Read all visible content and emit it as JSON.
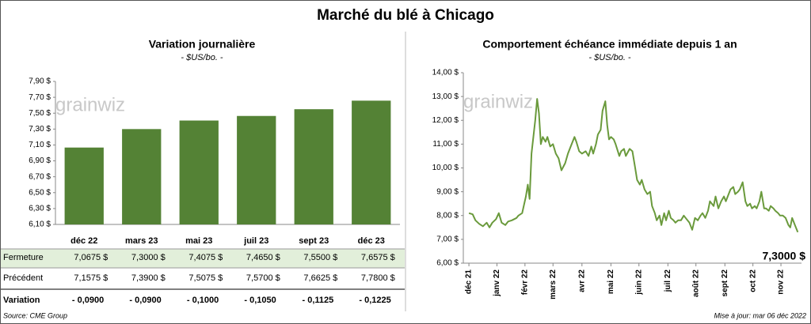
{
  "title": "Marché du blé à Chicago",
  "watermark": "grainwiz",
  "source": "Source: CME Group",
  "updated": "Mise à jour: mar 06 déc 2022",
  "chart_data": [
    {
      "type": "bar",
      "title": "Variation journalière",
      "subtitle": "- $US/bo. -",
      "categories": [
        "déc 22",
        "mars 23",
        "mai 23",
        "juil 23",
        "sept 23",
        "déc 23"
      ],
      "values": [
        7.0675,
        7.3,
        7.4075,
        7.465,
        7.55,
        7.6575
      ],
      "value_labels": [
        "7,0675 $",
        "7,3000 $",
        "7,4075 $",
        "7,4650 $",
        "7,5500 $",
        "7,6575 $"
      ],
      "color": "#548235",
      "ylim": [
        6.1,
        7.9
      ],
      "yticks": [
        {
          "value": 6.1,
          "label": "6,10 $"
        },
        {
          "value": 6.3,
          "label": "6,30 $"
        },
        {
          "value": 6.5,
          "label": "6,50 $"
        },
        {
          "value": 6.7,
          "label": "6,70 $"
        },
        {
          "value": 6.9,
          "label": "6,90 $"
        },
        {
          "value": 7.1,
          "label": "7,10 $"
        },
        {
          "value": 7.3,
          "label": "7,30 $"
        },
        {
          "value": 7.5,
          "label": "7,50 $"
        },
        {
          "value": 7.7,
          "label": "7,70 $"
        },
        {
          "value": 7.9,
          "label": "7,90 $"
        }
      ],
      "table": {
        "row_labels": [
          "Fermeture",
          "Précédent",
          "Variation"
        ],
        "previous": {
          "values": [
            7.1575,
            7.39,
            7.5075,
            7.57,
            7.6625,
            7.78
          ],
          "value_labels": [
            "7,1575 $",
            "7,3900 $",
            "7,5075 $",
            "7,5700 $",
            "7,6625 $",
            "7,7800 $"
          ]
        },
        "change": {
          "values": [
            -0.09,
            -0.09,
            -0.1,
            -0.105,
            -0.1125,
            -0.1225
          ],
          "value_labels": [
            "- 0,0900",
            "- 0,0900",
            "- 0,1000",
            "- 0,1050",
            "- 0,1125",
            "- 0,1225"
          ]
        }
      }
    },
    {
      "type": "line",
      "title": "Comportement  échéance immédiate depuis 1 an",
      "subtitle": "- $US/bo. -",
      "color": "#6a9a3c",
      "x": [
        0,
        4,
        7,
        11,
        15,
        19,
        22,
        25,
        29,
        32,
        35,
        39,
        42,
        46,
        51,
        53,
        57,
        61,
        63,
        65,
        67,
        71,
        73,
        75,
        77,
        79,
        82,
        84,
        87,
        90,
        93,
        96,
        99,
        103,
        106,
        109,
        113,
        115,
        118,
        121,
        125,
        128,
        131,
        133,
        136,
        138,
        141,
        143,
        146,
        148,
        150,
        152,
        155,
        157,
        161,
        163,
        166,
        168,
        172,
        175,
        178,
        180,
        183,
        185,
        188,
        191,
        194,
        196,
        199,
        201,
        204,
        206,
        209,
        211,
        214,
        216,
        219,
        221,
        224,
        227,
        230,
        232,
        236,
        239,
        242,
        245,
        248,
        250,
        253,
        256,
        258,
        262,
        264,
        267,
        270,
        273,
        275,
        278,
        280,
        283,
        285,
        288,
        290,
        293,
        296,
        298,
        301,
        303,
        306,
        308,
        311,
        313,
        316,
        318,
        321,
        323,
        326,
        328,
        331,
        333,
        336,
        339,
        342,
        344,
        346,
        349,
        352
      ],
      "values": [
        8.1,
        8.05,
        7.8,
        7.65,
        7.55,
        7.7,
        7.5,
        7.7,
        7.85,
        8.1,
        7.7,
        7.6,
        7.75,
        7.8,
        7.9,
        8.0,
        8.1,
        8.8,
        9.3,
        8.7,
        10.6,
        12.0,
        12.9,
        12.3,
        11.0,
        11.3,
        11.1,
        11.3,
        10.9,
        11.0,
        10.6,
        10.4,
        9.9,
        10.2,
        10.6,
        10.9,
        11.3,
        11.1,
        10.7,
        10.6,
        10.7,
        10.5,
        10.9,
        10.6,
        11.0,
        11.4,
        11.6,
        12.4,
        12.8,
        11.8,
        11.2,
        11.3,
        11.2,
        11.0,
        10.5,
        10.7,
        10.8,
        10.5,
        10.8,
        10.7,
        10.0,
        9.5,
        9.3,
        9.5,
        9.1,
        8.9,
        9.0,
        8.4,
        8.1,
        7.8,
        8.0,
        7.6,
        8.1,
        7.8,
        8.2,
        7.9,
        7.8,
        7.7,
        7.8,
        7.8,
        8.0,
        7.9,
        7.7,
        7.4,
        7.9,
        7.8,
        8.0,
        8.1,
        7.9,
        8.2,
        8.6,
        8.4,
        8.8,
        8.3,
        8.6,
        8.8,
        8.6,
        8.9,
        9.1,
        9.2,
        8.9,
        9.0,
        9.1,
        9.4,
        8.6,
        8.4,
        8.5,
        8.3,
        8.4,
        8.3,
        8.6,
        9.0,
        8.3,
        8.3,
        8.2,
        8.4,
        8.3,
        8.2,
        8.1,
        8.0,
        8.0,
        7.9,
        7.6,
        7.5,
        7.9,
        7.6,
        7.3
      ],
      "xlim": [
        -6,
        356
      ],
      "xticks": [
        {
          "value": 0,
          "label": "déc 21"
        },
        {
          "value": 30,
          "label": "janv 22"
        },
        {
          "value": 60,
          "label": "févr 22"
        },
        {
          "value": 90,
          "label": "mars 22"
        },
        {
          "value": 121,
          "label": "avr 22"
        },
        {
          "value": 152,
          "label": "mai 22"
        },
        {
          "value": 182,
          "label": "juin 22"
        },
        {
          "value": 213,
          "label": "juil 22"
        },
        {
          "value": 243,
          "label": "août 22"
        },
        {
          "value": 274,
          "label": "sept 22"
        },
        {
          "value": 304,
          "label": "oct 22"
        },
        {
          "value": 334,
          "label": "nov 22"
        }
      ],
      "ylim": [
        6,
        14
      ],
      "yticks": [
        {
          "value": 6,
          "label": "6,00 $"
        },
        {
          "value": 7,
          "label": "7,00 $"
        },
        {
          "value": 8,
          "label": "8,00 $"
        },
        {
          "value": 9,
          "label": "9,00 $"
        },
        {
          "value": 10,
          "label": "10,00 $"
        },
        {
          "value": 11,
          "label": "11,00 $"
        },
        {
          "value": 12,
          "label": "12,00 $"
        },
        {
          "value": 13,
          "label": "13,00 $"
        },
        {
          "value": 14,
          "label": "14,00 $"
        }
      ],
      "annotation": "7,3000 $"
    }
  ]
}
